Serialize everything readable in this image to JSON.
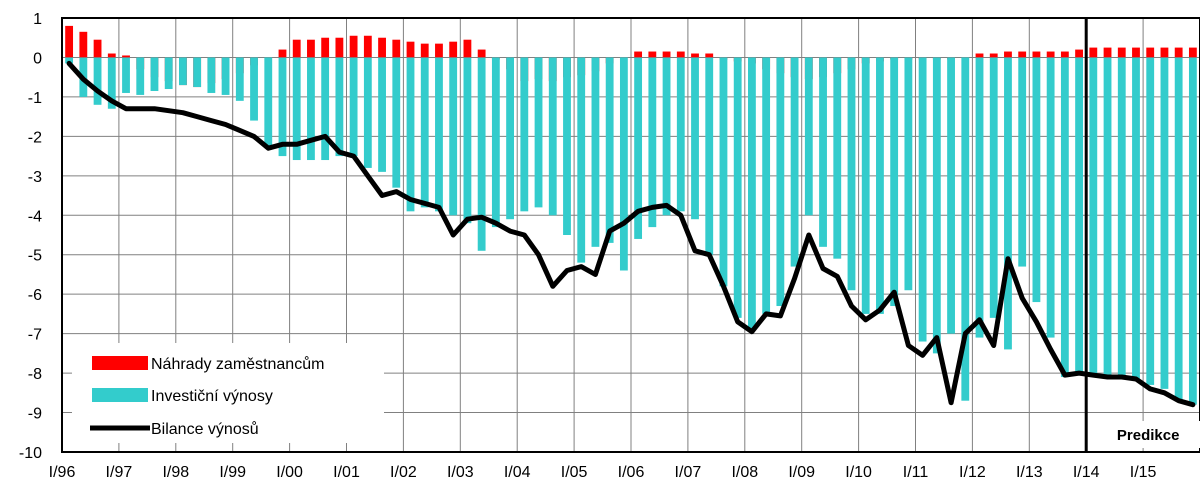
{
  "chart_data": {
    "type": "bar",
    "x": [
      "I/96",
      "II/96",
      "III/96",
      "IV/96",
      "I/97",
      "II/97",
      "III/97",
      "IV/97",
      "I/98",
      "II/98",
      "III/98",
      "IV/98",
      "I/99",
      "II/99",
      "III/99",
      "IV/99",
      "I/00",
      "II/00",
      "III/00",
      "IV/00",
      "I/01",
      "II/01",
      "III/01",
      "IV/01",
      "I/02",
      "II/02",
      "III/02",
      "IV/02",
      "I/03",
      "II/03",
      "III/03",
      "IV/03",
      "I/04",
      "II/04",
      "III/04",
      "IV/04",
      "I/05",
      "II/05",
      "III/05",
      "IV/05",
      "I/06",
      "II/06",
      "III/06",
      "IV/06",
      "I/07",
      "II/07",
      "III/07",
      "IV/07",
      "I/08",
      "II/08",
      "III/08",
      "IV/08",
      "I/09",
      "II/09",
      "III/09",
      "IV/09",
      "I/10",
      "II/10",
      "III/10",
      "IV/10",
      "I/11",
      "II/11",
      "III/11",
      "IV/11",
      "I/12",
      "II/12",
      "III/12",
      "IV/12",
      "I/13",
      "II/13",
      "III/13",
      "IV/13",
      "I/14",
      "II/14",
      "III/14",
      "IV/14",
      "I/15",
      "II/15",
      "III/15",
      "IV/15"
    ],
    "x_tick_labels": [
      "I/96",
      "I/97",
      "I/98",
      "I/99",
      "I/00",
      "I/01",
      "I/02",
      "I/03",
      "I/04",
      "I/05",
      "I/06",
      "I/07",
      "I/08",
      "I/09",
      "I/10",
      "I/11",
      "I/12",
      "I/13",
      "I/14",
      "I/15"
    ],
    "series": [
      {
        "name": "Náhrady zaměstnancům",
        "kind": "bar",
        "color": "#FF0000",
        "values": [
          0.8,
          0.65,
          0.45,
          0.1,
          0.05,
          -0.3,
          -0.5,
          -0.6,
          -0.7,
          -0.75,
          -0.65,
          -0.55,
          -0.4,
          -0.2,
          0.0,
          0.2,
          0.45,
          0.45,
          0.5,
          0.5,
          0.55,
          0.55,
          0.5,
          0.45,
          0.4,
          0.35,
          0.35,
          0.4,
          0.45,
          0.2,
          -0.05,
          -0.3,
          -0.6,
          -0.55,
          -0.6,
          -0.5,
          -0.45,
          -0.35,
          -0.15,
          0.0,
          0.15,
          0.15,
          0.15,
          0.15,
          0.1,
          0.1,
          -0.05,
          -0.1,
          -0.15,
          -0.3,
          -0.4,
          -0.5,
          -0.55,
          -0.5,
          -0.4,
          -0.3,
          -0.15,
          -0.1,
          -0.05,
          -0.05,
          -0.05,
          -0.05,
          -0.05,
          0.0,
          0.1,
          0.1,
          0.15,
          0.15,
          0.15,
          0.15,
          0.15,
          0.2,
          0.25,
          0.25,
          0.25,
          0.25,
          0.25,
          0.25,
          0.25,
          0.25
        ]
      },
      {
        "name": "Investiční výnosy",
        "kind": "bar",
        "color": "#33CCCC",
        "values": [
          -0.15,
          -1.0,
          -1.2,
          -1.3,
          -0.9,
          -0.95,
          -0.85,
          -0.8,
          -0.7,
          -0.75,
          -0.9,
          -0.95,
          -1.1,
          -1.6,
          -2.3,
          -2.5,
          -2.6,
          -2.6,
          -2.6,
          -2.5,
          -2.5,
          -2.8,
          -2.9,
          -3.3,
          -3.9,
          -3.8,
          -3.9,
          -4.0,
          -4.2,
          -4.9,
          -4.3,
          -4.1,
          -3.9,
          -3.8,
          -4.0,
          -4.5,
          -5.2,
          -4.8,
          -4.7,
          -5.4,
          -4.6,
          -4.3,
          -4.0,
          -3.9,
          -4.1,
          -5.0,
          -5.8,
          -6.6,
          -6.9,
          -6.5,
          -6.3,
          -5.3,
          -4.0,
          -4.8,
          -5.1,
          -5.9,
          -6.5,
          -6.5,
          -6.3,
          -5.9,
          -7.2,
          -7.5,
          -7.0,
          -8.7,
          -7.1,
          -6.6,
          -7.4,
          -5.3,
          -6.2,
          -7.1,
          -8.1,
          -8.0,
          -8.1,
          -8.1,
          -8.1,
          -8.2,
          -8.3,
          -8.4,
          -8.7,
          -8.8
        ]
      },
      {
        "name": "Bilance výnosů",
        "kind": "line",
        "color": "#000000",
        "values": [
          -0.15,
          -0.55,
          -0.85,
          -1.1,
          -1.3,
          -1.3,
          -1.3,
          -1.35,
          -1.4,
          -1.5,
          -1.6,
          -1.7,
          -1.85,
          -2.0,
          -2.3,
          -2.2,
          -2.2,
          -2.1,
          -2.0,
          -2.4,
          -2.5,
          -3.0,
          -3.5,
          -3.4,
          -3.6,
          -3.7,
          -3.8,
          -4.5,
          -4.1,
          -4.05,
          -4.2,
          -4.4,
          -4.5,
          -5.0,
          -5.8,
          -5.4,
          -5.3,
          -5.5,
          -4.4,
          -4.2,
          -3.9,
          -3.8,
          -3.75,
          -4.0,
          -4.9,
          -5.0,
          -5.8,
          -6.7,
          -6.95,
          -6.5,
          -6.55,
          -5.6,
          -4.5,
          -5.35,
          -5.55,
          -6.3,
          -6.65,
          -6.4,
          -5.95,
          -7.3,
          -7.55,
          -7.1,
          -8.75,
          -7.0,
          -6.65,
          -7.3,
          -5.1,
          -6.1,
          -6.7,
          -7.4,
          -8.05,
          -8.0,
          -8.05,
          -8.1,
          -8.1,
          -8.15,
          -8.4,
          -8.5,
          -8.7,
          -8.8
        ]
      }
    ],
    "xlabel": "",
    "ylabel": "",
    "ylim": [
      -10,
      1
    ],
    "yticks": [
      1,
      0,
      -1,
      -2,
      -3,
      -4,
      -5,
      -6,
      -7,
      -8,
      -9,
      -10
    ],
    "grid": true,
    "legend": "bottom-left",
    "forecast": {
      "label": "Predikce",
      "start": "I/14"
    }
  }
}
